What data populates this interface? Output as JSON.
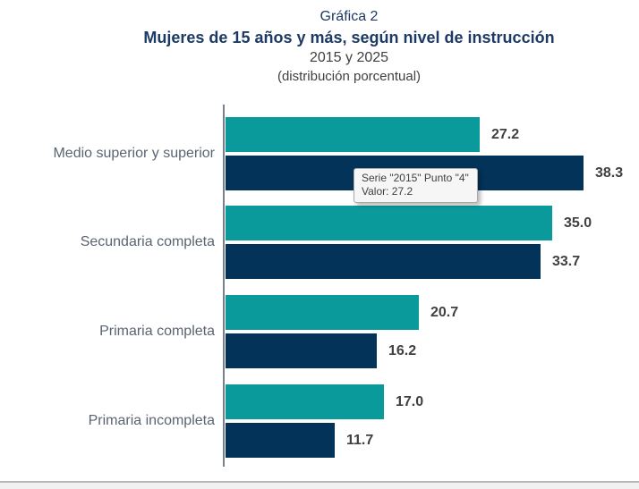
{
  "header": {
    "label": "Gráfica 2",
    "title": "Mujeres de 15 años y más, según nivel de instrucción",
    "subtitle": "2015 y 2025",
    "note": "(distribución porcentual)"
  },
  "tooltip": {
    "line1": "Serie \"2015\" Punto \"4\"",
    "line2": "Valor: 27.2"
  },
  "colors": {
    "series_2015": "#0B9A9B",
    "series_2025": "#04335A",
    "title_navy": "#1C3A63",
    "axis_line": "#76818D",
    "value_label": "#404040",
    "category_label": "#5A6572"
  },
  "chart_data": {
    "type": "bar",
    "orientation": "horizontal",
    "title": "Gráfica 2 — Mujeres de 15 años y más, según nivel de instrucción, 2015 y 2025 (distribución porcentual)",
    "categories": [
      "Medio superior y superior",
      "Secundaria completa",
      "Primaria completa",
      "Primaria incompleta"
    ],
    "series": [
      {
        "name": "2015",
        "color": "#0B9A9B",
        "values": [
          27.2,
          35.0,
          20.7,
          17.0
        ]
      },
      {
        "name": "2025",
        "color": "#04335A",
        "values": [
          38.3,
          33.7,
          16.2,
          11.7
        ]
      }
    ],
    "value_labels": [
      [
        "27.2",
        "38.3"
      ],
      [
        "35.0",
        "33.7"
      ],
      [
        "20.7",
        "16.2"
      ],
      [
        "17.0",
        "11.7"
      ]
    ],
    "xlim": [
      0,
      44
    ],
    "grid": false,
    "legend": "none",
    "data_labels": "outside-end"
  }
}
